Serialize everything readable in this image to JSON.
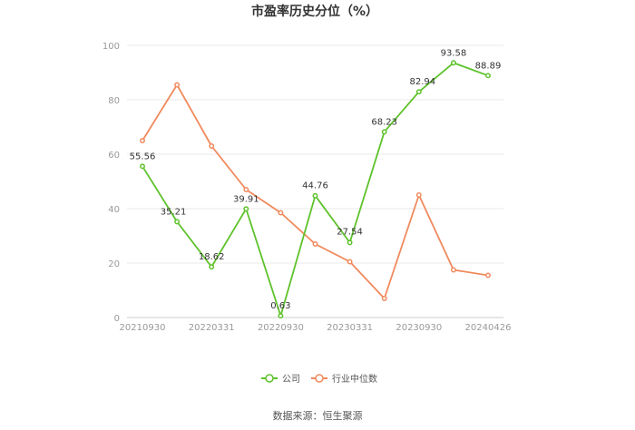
{
  "chart_data": {
    "type": "line",
    "title": "市盈率历史分位（%）",
    "ylim": [
      0,
      100
    ],
    "yticks": [
      0,
      20,
      40,
      60,
      80,
      100
    ],
    "x_tick_labels": [
      "20210930",
      "20220331",
      "20220930",
      "20230331",
      "20230930",
      "20240426"
    ],
    "series": [
      {
        "name": "公司",
        "color": "#5ec22b",
        "values": [
          55.56,
          35.21,
          18.62,
          39.91,
          0.63,
          44.76,
          27.54,
          68.23,
          82.94,
          93.58,
          88.89
        ],
        "labels": [
          "55.56",
          "35.21",
          "18.62",
          "39.91",
          "0.63",
          "44.76",
          "27.54",
          "68.23",
          "82.94",
          "93.58",
          "88.89"
        ]
      },
      {
        "name": "行业中位数",
        "color": "#f08a5d",
        "values": [
          65,
          85.5,
          63,
          47,
          38.5,
          27,
          20.5,
          7,
          45,
          17.5,
          15.5
        ]
      }
    ],
    "legend_position": "bottom",
    "grid": true
  },
  "source": "数据来源：恒生聚源"
}
